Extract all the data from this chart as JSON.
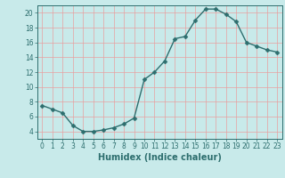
{
  "x": [
    0,
    1,
    2,
    3,
    4,
    5,
    6,
    7,
    8,
    9,
    10,
    11,
    12,
    13,
    14,
    15,
    16,
    17,
    18,
    19,
    20,
    21,
    22,
    23
  ],
  "y": [
    7.5,
    7.0,
    6.5,
    4.8,
    4.0,
    4.0,
    4.2,
    4.5,
    5.0,
    5.8,
    11.0,
    12.0,
    13.5,
    16.5,
    16.8,
    19.0,
    20.5,
    20.5,
    19.8,
    18.8,
    16.0,
    15.5,
    15.0,
    14.7
  ],
  "line_color": "#2d6e6e",
  "marker": "D",
  "marker_size": 2.5,
  "bg_color": "#c8eaea",
  "grid_color": "#e8a0a0",
  "xlabel": "Humidex (Indice chaleur)",
  "xlabel_color": "#2d6e6e",
  "xlim": [
    -0.5,
    23.5
  ],
  "ylim": [
    3.0,
    21.0
  ],
  "yticks": [
    4,
    6,
    8,
    10,
    12,
    14,
    16,
    18,
    20
  ],
  "xticks": [
    0,
    1,
    2,
    3,
    4,
    5,
    6,
    7,
    8,
    9,
    10,
    11,
    12,
    13,
    14,
    15,
    16,
    17,
    18,
    19,
    20,
    21,
    22,
    23
  ],
  "tick_color": "#2d6e6e",
  "tick_fontsize": 5.5,
  "xlabel_fontsize": 7.0,
  "line_width": 1.0
}
